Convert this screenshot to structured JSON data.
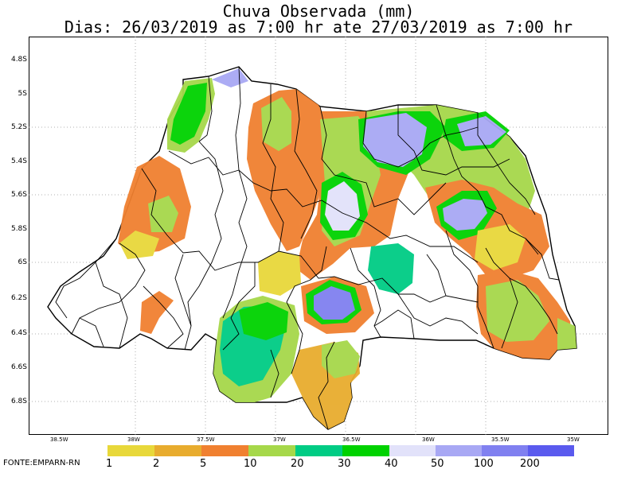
{
  "header": {
    "title": "Chuva Observada (mm)",
    "period": "Dias: 26/03/2019 as 7:00 hr ate 27/03/2019 as 7:00 hr"
  },
  "axes": {
    "y_ticks": [
      "4.8S",
      "5S",
      "5.2S",
      "5.4S",
      "5.6S",
      "5.8S",
      "6S",
      "6.2S",
      "6.4S",
      "6.6S",
      "6.8S"
    ],
    "x_ticks": [
      "38.5W",
      "38W",
      "37.5W",
      "37W",
      "36.5W",
      "36W",
      "35.5W",
      "35W"
    ]
  },
  "legend": {
    "labels": [
      "1",
      "2",
      "5",
      "10",
      "20",
      "30",
      "40",
      "50",
      "100",
      "200"
    ],
    "colors": [
      "#e8d83a",
      "#e8ac2e",
      "#f08030",
      "#a6d84a",
      "#00cc84",
      "#00d200",
      "#e2e2fa",
      "#a8a8f4",
      "#8080f0",
      "#5a5aee"
    ]
  },
  "source": "FONTE:EMPARN-RN",
  "rain_colors": {
    "c1": "#e8d83a",
    "c2": "#e8ac2e",
    "c5": "#f08030",
    "c10": "#a6d84a",
    "c20": "#00cc84",
    "c30": "#00d200",
    "c40": "#e2e2fa",
    "c50": "#a8a8f4",
    "c100": "#8080f0"
  }
}
